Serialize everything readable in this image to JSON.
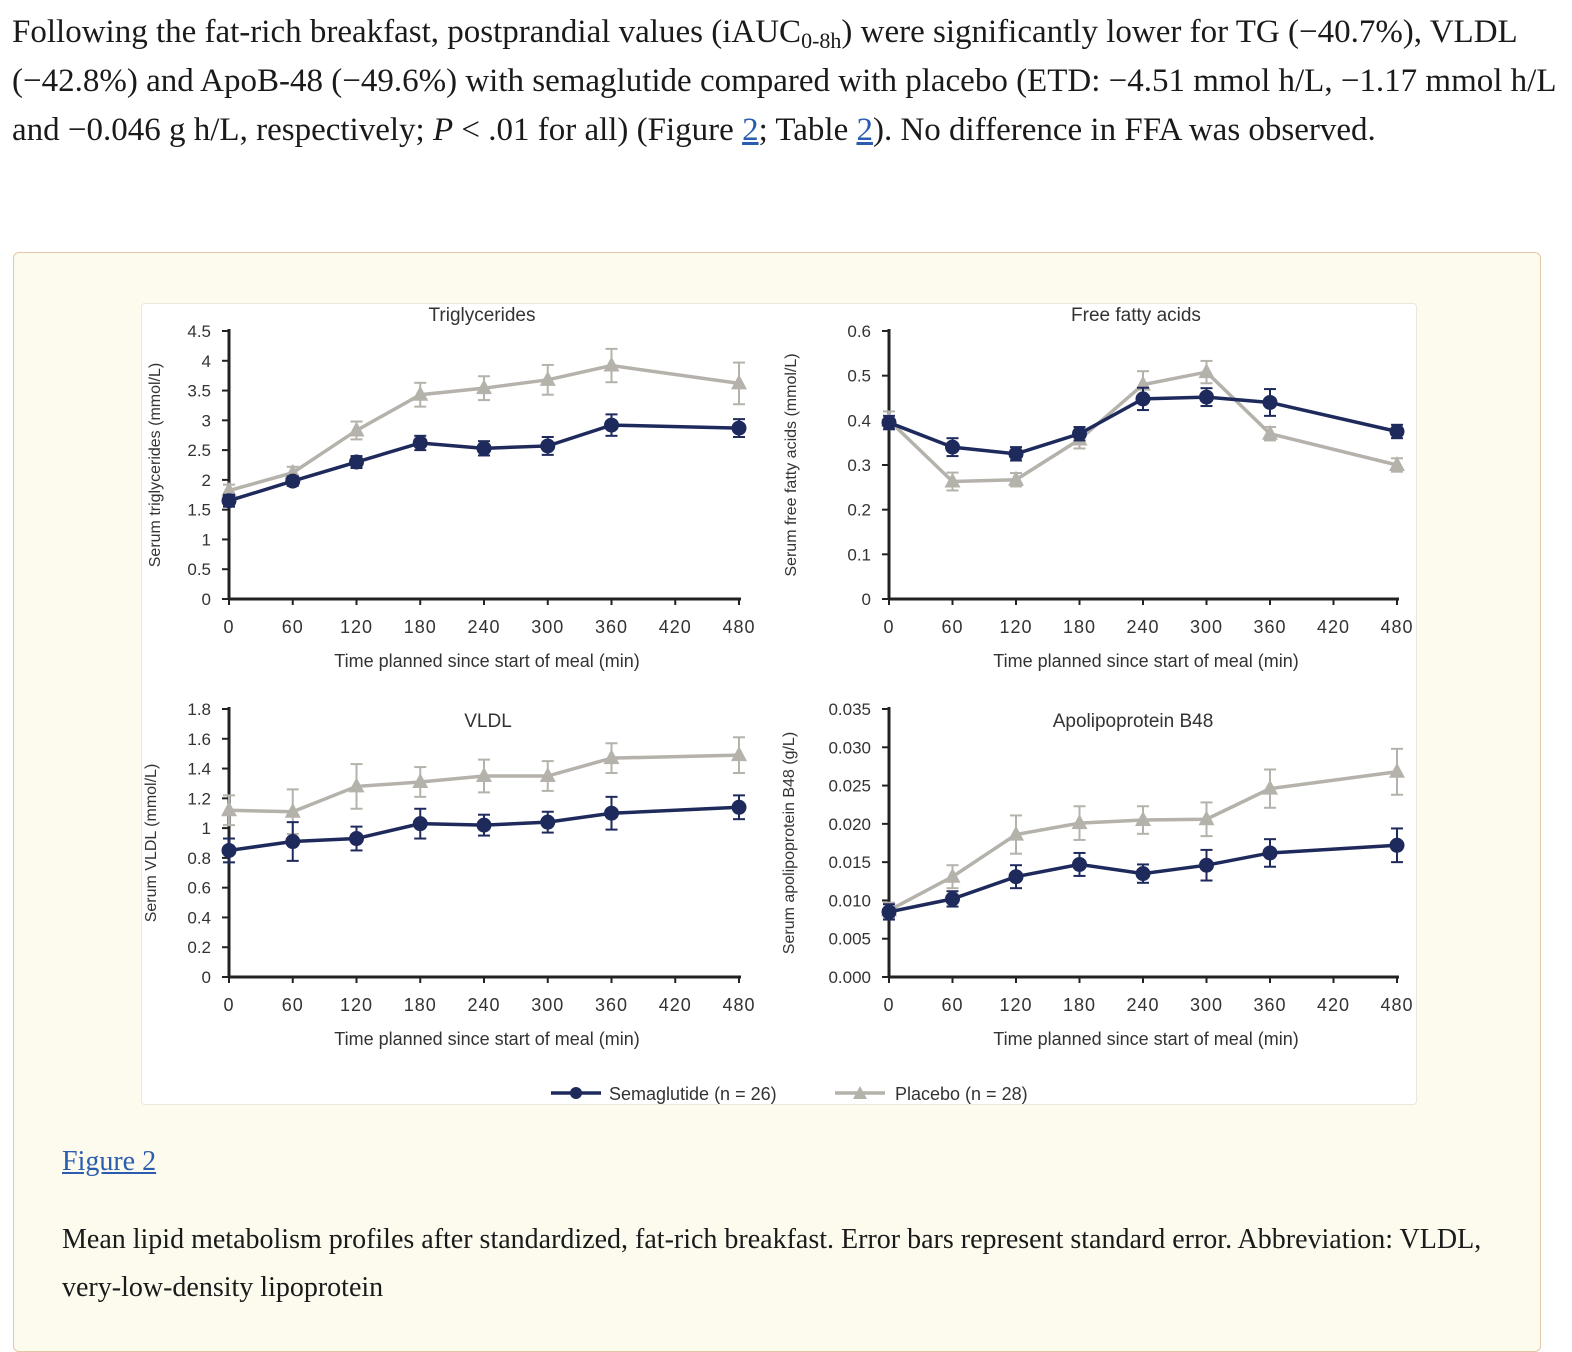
{
  "paragraph": {
    "part1": "Following the fat-rich breakfast, postprandial values (iAUC",
    "sub": "0-8h",
    "part2": ") were significantly lower for TG (−40.7%), VLDL (−42.8%) and ApoB-48 (−49.6%) with semaglutide compared with placebo (ETD: −4.51 mmol h/L, −1.17 mmol h/L and −0.046 g h/L, respectively; ",
    "p_italic": "P",
    "part3": " < .01 for all) (Figure ",
    "figure_ref": "2",
    "part4": "; Table ",
    "table_ref": "2",
    "part5": "). No difference in FFA was observed."
  },
  "figure": {
    "link_label": "Figure 2",
    "caption": "Mean lipid metabolism profiles after standardized, fat-rich breakfast. Error bars represent standard error. Abbreviation: VLDL, very-low-density lipoprotein"
  },
  "legend": {
    "semaglutide": "Semaglutide (n = 26)",
    "placebo": "Placebo (n = 28)"
  },
  "colors": {
    "semaglutide": "#1f2a5c",
    "placebo": "#b5b2ab"
  },
  "chart_data": [
    {
      "type": "line",
      "title": "Triglycerides",
      "xlabel": "Time planned since start of meal (min)",
      "ylabel": "Serum triglycerides (mmol/L)",
      "x": [
        0,
        60,
        120,
        180,
        240,
        300,
        360,
        480
      ],
      "xticks": [
        "0",
        "60",
        "120",
        "180",
        "240",
        "300",
        "360",
        "420",
        "480"
      ],
      "ylim": [
        0,
        4.5
      ],
      "yticks": [
        "0",
        "0.5",
        "1",
        "1.5",
        "2",
        "2.5",
        "3",
        "3.5",
        "4",
        "4.5"
      ],
      "series": [
        {
          "name": "Semaglutide (n = 26)",
          "values": [
            1.65,
            1.98,
            2.3,
            2.62,
            2.53,
            2.57,
            2.92,
            2.87
          ],
          "se": [
            0.1,
            0.08,
            0.1,
            0.12,
            0.12,
            0.15,
            0.18,
            0.15
          ]
        },
        {
          "name": "Placebo (n = 28)",
          "values": [
            1.82,
            2.12,
            2.83,
            3.43,
            3.54,
            3.68,
            3.92,
            3.62
          ],
          "se": [
            0.1,
            0.1,
            0.15,
            0.2,
            0.2,
            0.25,
            0.28,
            0.35
          ]
        }
      ]
    },
    {
      "type": "line",
      "title": "Free fatty acids",
      "xlabel": "Time planned since start of meal (min)",
      "ylabel": "Serum free fatty acids (mmol/L)",
      "x": [
        0,
        60,
        120,
        180,
        240,
        300,
        360,
        480
      ],
      "xticks": [
        "0",
        "60",
        "120",
        "180",
        "240",
        "300",
        "360",
        "420",
        "480"
      ],
      "ylim": [
        0,
        0.6
      ],
      "yticks": [
        "0",
        "0.1",
        "0.2",
        "0.3",
        "0.4",
        "0.5",
        "0.6"
      ],
      "series": [
        {
          "name": "Semaglutide (n = 26)",
          "values": [
            0.395,
            0.34,
            0.325,
            0.37,
            0.448,
            0.452,
            0.44,
            0.375
          ],
          "se": [
            0.015,
            0.02,
            0.015,
            0.015,
            0.025,
            0.02,
            0.03,
            0.015
          ]
        },
        {
          "name": "Placebo (n = 28)",
          "values": [
            0.4,
            0.263,
            0.267,
            0.357,
            0.48,
            0.508,
            0.37,
            0.3
          ],
          "se": [
            0.02,
            0.02,
            0.015,
            0.02,
            0.03,
            0.025,
            0.015,
            0.015
          ]
        }
      ]
    },
    {
      "type": "line",
      "title": "VLDL",
      "xlabel": "Time planned since start of meal (min)",
      "ylabel": "Serum VLDL (mmol/L)",
      "x": [
        0,
        60,
        120,
        180,
        240,
        300,
        360,
        480
      ],
      "xticks": [
        "0",
        "60",
        "120",
        "180",
        "240",
        "300",
        "360",
        "420",
        "480"
      ],
      "ylim": [
        0,
        1.8
      ],
      "yticks": [
        "0",
        "0.2",
        "0.4",
        "0.6",
        "0.8",
        "1",
        "1.2",
        "1.4",
        "1.6",
        "1.8"
      ],
      "series": [
        {
          "name": "Semaglutide (n = 26)",
          "values": [
            0.85,
            0.91,
            0.93,
            1.03,
            1.02,
            1.04,
            1.1,
            1.14
          ],
          "se": [
            0.08,
            0.13,
            0.08,
            0.1,
            0.07,
            0.07,
            0.11,
            0.08
          ]
        },
        {
          "name": "Placebo (n = 28)",
          "values": [
            1.12,
            1.11,
            1.28,
            1.31,
            1.35,
            1.35,
            1.47,
            1.49
          ],
          "se": [
            0.1,
            0.15,
            0.15,
            0.1,
            0.11,
            0.1,
            0.1,
            0.12
          ]
        }
      ]
    },
    {
      "type": "line",
      "title": "Apolipoprotein B48",
      "xlabel": "Time planned since start of meal (min)",
      "ylabel": "Serum apolipoprotein B48 (g/L)",
      "x": [
        0,
        60,
        120,
        180,
        240,
        300,
        360,
        480
      ],
      "xticks": [
        "0",
        "60",
        "120",
        "180",
        "240",
        "300",
        "360",
        "420",
        "480"
      ],
      "ylim": [
        0,
        0.035
      ],
      "yticks": [
        "0.000",
        "0.005",
        "0.010",
        "0.015",
        "0.020",
        "0.025",
        "0.030",
        "0.035"
      ],
      "series": [
        {
          "name": "Semaglutide (n = 26)",
          "values": [
            0.0085,
            0.0102,
            0.0131,
            0.0147,
            0.0135,
            0.0146,
            0.0162,
            0.0172
          ],
          "se": [
            0.001,
            0.001,
            0.0015,
            0.0015,
            0.0012,
            0.002,
            0.0018,
            0.0022
          ]
        },
        {
          "name": "Placebo (n = 28)",
          "values": [
            0.0087,
            0.0131,
            0.0186,
            0.0201,
            0.0205,
            0.0206,
            0.0246,
            0.0268
          ],
          "se": [
            0.001,
            0.0015,
            0.0025,
            0.0022,
            0.0018,
            0.0022,
            0.0025,
            0.003
          ]
        }
      ]
    }
  ]
}
